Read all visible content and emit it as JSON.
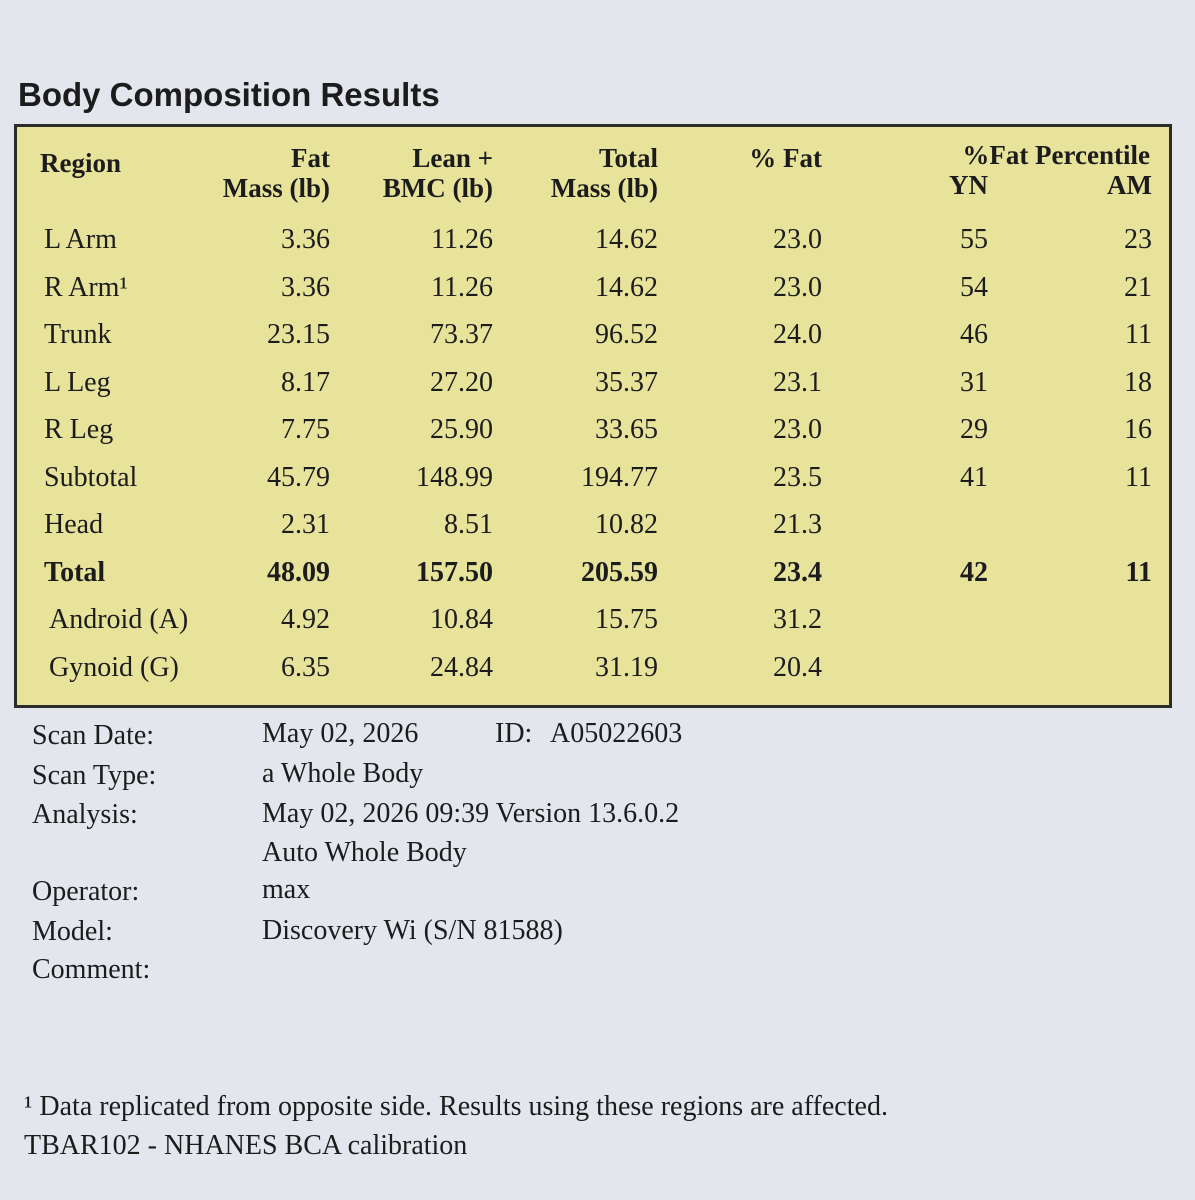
{
  "header": {
    "title": "Body Composition Results"
  },
  "table": {
    "columns": [
      [
        "Region"
      ],
      [
        "Fat",
        "Mass (lb)"
      ],
      [
        "Lean +",
        "BMC (lb)"
      ],
      [
        "Total",
        "Mass (lb)"
      ],
      [
        "% Fat"
      ]
    ],
    "percentile_header": "%Fat Percentile",
    "percentile_columns": [
      "YN",
      "AM"
    ],
    "rows": [
      {
        "region": "L Arm",
        "fat": "3.36",
        "lean": "11.26",
        "total": "14.62",
        "pct_fat": "23.0",
        "yn": "55",
        "am": "23"
      },
      {
        "region": "R Arm¹",
        "fat": "3.36",
        "lean": "11.26",
        "total": "14.62",
        "pct_fat": "23.0",
        "yn": "54",
        "am": "21"
      },
      {
        "region": "Trunk",
        "fat": "23.15",
        "lean": "73.37",
        "total": "96.52",
        "pct_fat": "24.0",
        "yn": "46",
        "am": "11"
      },
      {
        "region": "L Leg",
        "fat": "8.17",
        "lean": "27.20",
        "total": "35.37",
        "pct_fat": "23.1",
        "yn": "31",
        "am": "18"
      },
      {
        "region": "R Leg",
        "fat": "7.75",
        "lean": "25.90",
        "total": "33.65",
        "pct_fat": "23.0",
        "yn": "29",
        "am": "16"
      },
      {
        "region": "Subtotal",
        "fat": "45.79",
        "lean": "148.99",
        "total": "194.77",
        "pct_fat": "23.5",
        "yn": "41",
        "am": "11"
      },
      {
        "region": "Head",
        "fat": "2.31",
        "lean": "8.51",
        "total": "10.82",
        "pct_fat": "21.3"
      },
      {
        "region": "Total",
        "fat": "48.09",
        "lean": "157.50",
        "total": "205.59",
        "pct_fat": "23.4",
        "yn": "42",
        "am": "11"
      },
      {
        "region": "Android (A)",
        "fat": "4.92",
        "lean": "10.84",
        "total": "15.75",
        "pct_fat": "31.2"
      },
      {
        "region": "Gynoid (G)",
        "fat": "6.35",
        "lean": "24.84",
        "total": "31.19",
        "pct_fat": "20.4"
      }
    ]
  },
  "info": {
    "scan_date": {
      "label": "Scan Date:",
      "value": "May 02, 2026",
      "id_label": "ID:",
      "id": "A05022603"
    },
    "scan_type": {
      "label": "Scan Type:",
      "value": "a Whole Body"
    },
    "analysis": {
      "label": "Analysis:",
      "value": [
        "May 02, 2026 09:39 Version 13.6.0.2",
        "Auto Whole Body"
      ]
    },
    "operator": {
      "label": "Operator:",
      "value": "max"
    },
    "model": {
      "label": "Model:",
      "value": "Discovery Wi (S/N 81588)"
    },
    "comment": {
      "label": "Comment:"
    }
  },
  "footnotes": [
    "¹ Data replicated from opposite side. Results using these regions are affected.",
    "TBAR102 - NHANES BCA calibration"
  ]
}
